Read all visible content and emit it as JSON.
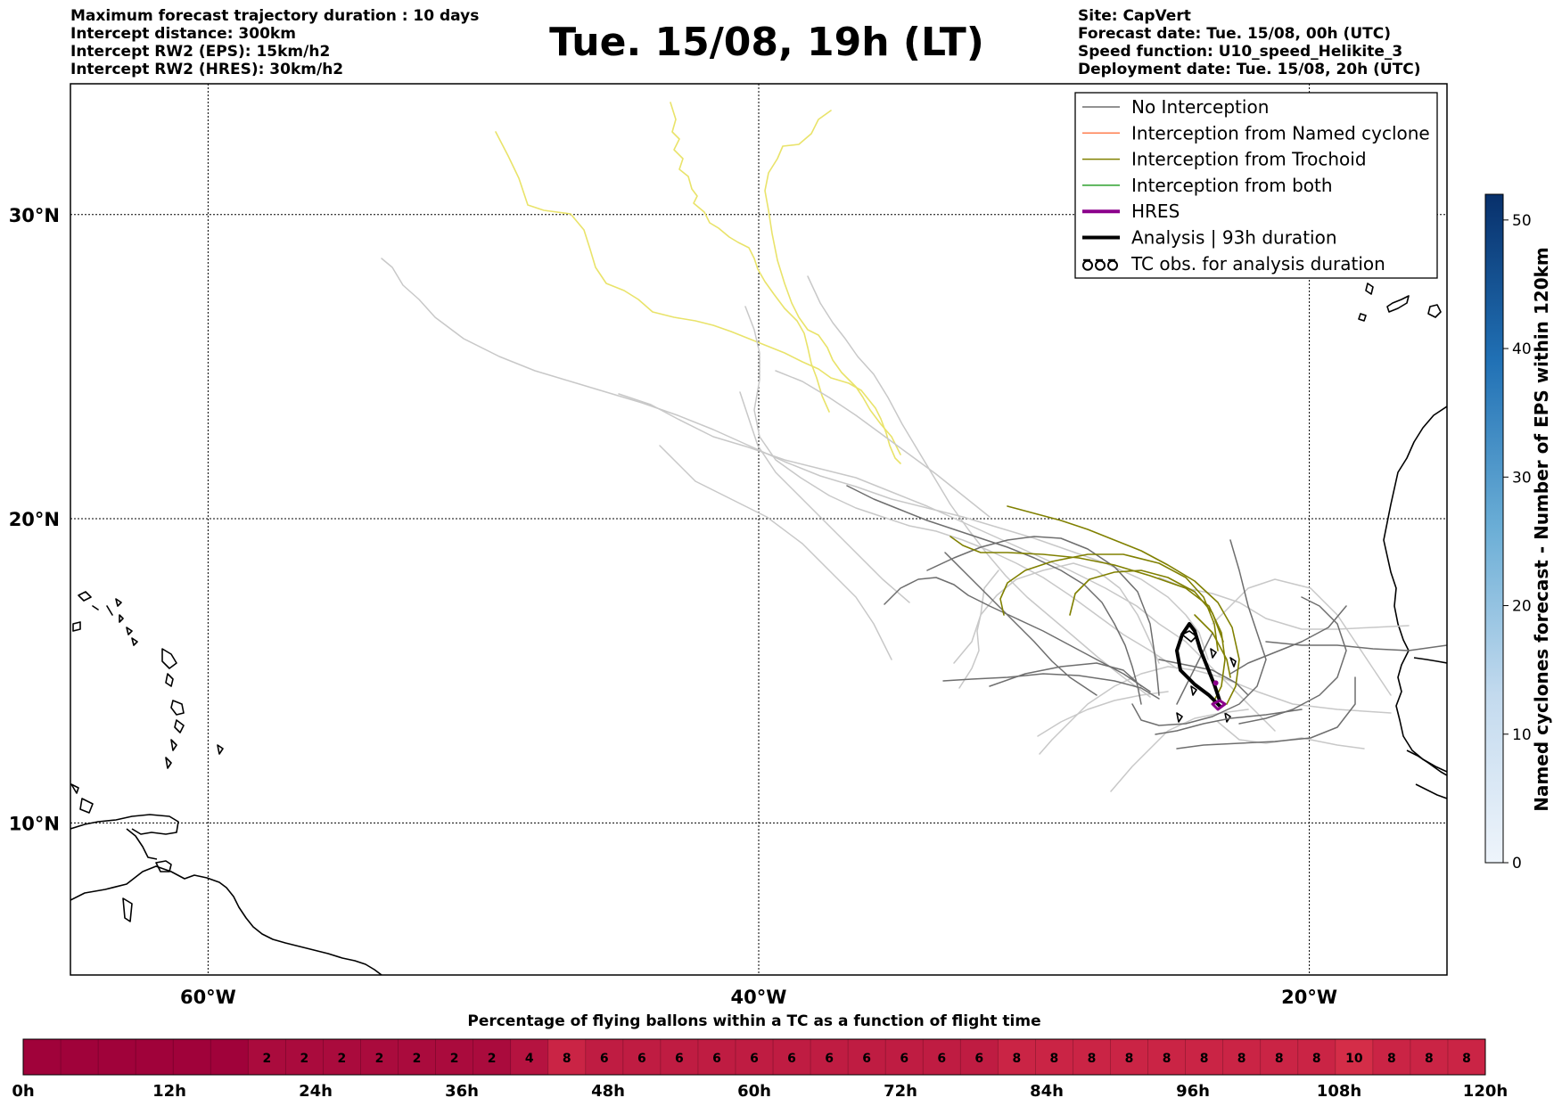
{
  "header": {
    "left_lines": [
      "Maximum forecast trajectory duration : 10 days",
      "Intercept distance: 300km",
      "Intercept RW2 (EPS):  15km/h2",
      "Intercept RW2 (HRES): 30km/h2"
    ],
    "title": "Tue. 15/08, 19h (LT)",
    "right_lines": [
      "Site: CapVert",
      "Forecast date: Tue. 15/08, 00h (UTC)",
      "Speed function: U10_speed_Helikite_3",
      "Deployment date: Tue. 15/08, 20h (UTC)"
    ]
  },
  "map": {
    "lon_range": [
      -65,
      -15
    ],
    "lat_range": [
      5,
      34.3
    ],
    "lon_ticks": [
      {
        "value": -60,
        "label": "60°W"
      },
      {
        "value": -40,
        "label": "40°W"
      },
      {
        "value": -20,
        "label": "20°W"
      }
    ],
    "lat_ticks": [
      {
        "value": 30,
        "label": "30°N"
      },
      {
        "value": 20,
        "label": "20°N"
      },
      {
        "value": 10,
        "label": "10°N"
      }
    ],
    "launch_site": {
      "lon": -23.4,
      "lat": 14.6
    },
    "colors": {
      "no_interception": "#6e6e6e",
      "no_interception_light": "#c8c8c8",
      "named_cyclone": "#ff7f50",
      "trochoid": "#808000",
      "both": "#2ca02c",
      "hres": "#8b008b",
      "analysis": "#000000",
      "far_tracks": "#e8e070"
    }
  },
  "legend": {
    "items": [
      {
        "label": "No Interception",
        "style": "grey"
      },
      {
        "label": "Interception from Named cyclone",
        "style": "coral"
      },
      {
        "label": "Interception from Trochoid",
        "style": "olive"
      },
      {
        "label": "Interception from both",
        "style": "green"
      },
      {
        "label": "HRES",
        "style": "purple"
      },
      {
        "label": "Analysis | 93h duration",
        "style": "black"
      },
      {
        "label": "TC obs. for analysis duration",
        "style": "symbol"
      }
    ]
  },
  "colorbar": {
    "label": "Named cyclones forecast - Number of EPS within 120km",
    "min": 0,
    "max": 52,
    "ticks": [
      "0",
      "10",
      "20",
      "30",
      "40",
      "50"
    ],
    "color_low": "#e8f1fa",
    "color_high": "#08306b"
  },
  "flight_bar": {
    "title": "Percentage of flying ballons within a TC as a function of flight time",
    "values": [
      0,
      0,
      0,
      0,
      0,
      0,
      2,
      2,
      2,
      2,
      2,
      2,
      2,
      4,
      8,
      6,
      6,
      6,
      6,
      6,
      6,
      6,
      6,
      6,
      6,
      6,
      8,
      8,
      8,
      8,
      8,
      8,
      8,
      8,
      8,
      10,
      8,
      8,
      8
    ],
    "tick_labels": [
      "0h",
      "12h",
      "24h",
      "36h",
      "48h",
      "60h",
      "72h",
      "84h",
      "96h",
      "108h",
      "120h"
    ]
  }
}
